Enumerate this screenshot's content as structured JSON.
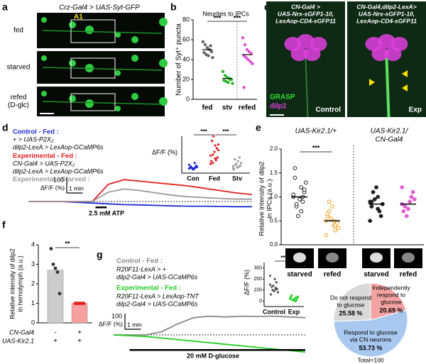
{
  "a": {
    "label": "a",
    "title": "Crz-Gal4 > UAS-Syt-GFP",
    "rows": [
      [
        "fed"
      ],
      [
        "starved"
      ],
      [
        "refed",
        "(D-glc)"
      ]
    ],
    "region": "A1"
  },
  "b": {
    "label": "b",
    "type": "scatter",
    "title": "Neurites to IPCs",
    "ylabel": "Number of Syt⁺ puncta",
    "categories": [
      "fed",
      "stv",
      "refed"
    ],
    "colors": [
      "#666666",
      "#2db82d",
      "#e050d0"
    ],
    "points": [
      [
        58,
        55,
        52,
        50,
        48,
        47,
        45,
        44,
        54,
        42
      ],
      [
        28,
        24,
        22,
        21,
        20,
        19,
        18,
        17,
        20,
        16
      ],
      [
        62,
        55,
        50,
        48,
        46,
        44,
        42,
        40,
        38,
        36,
        12
      ]
    ],
    "means": [
      50,
      21,
      45
    ],
    "ylim": [
      0,
      80
    ],
    "yticks": [
      0,
      20,
      40,
      60,
      80
    ],
    "significance": [
      "***",
      "***"
    ]
  },
  "c": {
    "label": "c",
    "panels": [
      {
        "genotype": [
          "CN-Gal4 >",
          "UAS-Nrx-sGFP1-10,",
          "LexAop-CD4-sGFP11"
        ],
        "condition": "Control"
      },
      {
        "genotype": [
          "CN-Gal4,dilp2-LexA>",
          "UAS-Nrx-sGFP1-10,",
          "LexAop-CD4-sGFP11"
        ],
        "condition": "Exp"
      }
    ],
    "channels": [
      {
        "name": "GRASP",
        "color": "#33dd33"
      },
      {
        "name": "dilp2",
        "color": "#e040e0"
      }
    ]
  },
  "d": {
    "label": "d",
    "type": "line",
    "x": [
      0,
      1,
      2,
      3,
      4,
      5,
      6,
      7,
      8,
      9,
      10,
      11,
      12,
      13,
      14
    ],
    "series": [
      {
        "name": "Control - Fed :",
        "color": "#1f2bd0",
        "genotype": [
          "+ > UAS-P2X₂",
          "dilp2-LexA > LexAop-GCaMP6s"
        ],
        "values": [
          0,
          0,
          0,
          -5,
          -10,
          -15,
          -20,
          -22,
          -25,
          -28,
          -30,
          -30,
          -32,
          -33,
          -33
        ]
      },
      {
        "name": "Experimental - Fed :",
        "color": "#e02020",
        "genotype": [
          "CN-Gal4 > UAS-P2X₂",
          "dilp2-LexA > LexAop-GCaMP6s"
        ],
        "values": [
          0,
          0,
          0,
          0,
          0,
          110,
          140,
          130,
          120,
          110,
          100,
          85,
          70,
          55,
          45
        ]
      },
      {
        "name": "Experimental - Starved :",
        "color": "#999999",
        "genotype": [],
        "values": [
          0,
          0,
          0,
          0,
          0,
          60,
          80,
          70,
          55,
          40,
          30,
          25,
          20,
          15,
          15
        ]
      }
    ],
    "scale_bar": {
      "value": 100,
      "unit": "ΔF/F (%)",
      "time": "1 min"
    },
    "stimulus": "2.5 mM ATP",
    "stimulus_range": [
      4.2,
      4.9
    ],
    "inset": {
      "ylabel": "ΔF/F (%)",
      "categories": [
        "Con",
        "Fed",
        "Stv"
      ],
      "colors": [
        "#1f2bd0",
        "#e02020",
        "#999999"
      ],
      "points": [
        [
          0,
          5,
          10,
          15,
          -5,
          20,
          30,
          -10,
          8,
          12,
          2,
          40,
          60
        ],
        [
          50,
          100,
          150,
          200,
          250,
          300,
          120,
          180,
          80,
          220,
          350,
          140,
          90,
          60,
          260,
          110
        ],
        [
          0,
          20,
          40,
          60,
          80,
          100,
          30,
          10,
          -10,
          120,
          50,
          25
        ]
      ],
      "ylim": [
        -50,
        350
      ],
      "significance": [
        "***",
        "***"
      ]
    }
  },
  "e": {
    "label": "e",
    "titles": [
      [
        "UAS-Kir2.1/+"
      ],
      [
        "UAS-Kir2.1/",
        "CN-Gal4"
      ]
    ],
    "ylabel": [
      "Relative intensity of dilp2",
      "in IPCs (a.u.)"
    ],
    "categories": [
      "starved",
      "refed",
      "starved",
      "refed"
    ],
    "colors": [
      "#222222",
      "#f0a020",
      "#222222",
      "#e060d0"
    ],
    "filled": [
      false,
      false,
      true,
      true
    ],
    "points": [
      [
        1.0,
        1.2,
        1.4,
        0.9,
        0.8,
        1.1,
        0.6,
        1.3,
        0.95,
        1.05,
        0.7,
        1.6,
        1.0,
        0.85,
        1.15
      ],
      [
        0.5,
        0.4,
        0.6,
        0.3,
        0.7,
        0.45,
        0.55,
        0.35,
        0.8,
        0.2,
        0.5,
        0.65,
        0.4,
        0.9
      ],
      [
        0.9,
        1.0,
        0.8,
        0.7,
        1.1,
        0.6,
        0.95,
        0.85,
        1.2,
        0.5,
        0.75,
        0.9
      ],
      [
        0.85,
        0.9,
        0.7,
        1.0,
        0.8,
        1.1,
        0.6,
        0.95,
        0.75,
        1.2
      ]
    ],
    "means": [
      1.0,
      0.5,
      0.85,
      0.85
    ],
    "ylim": [
      0,
      2
    ],
    "yticks": [
      {
        "value": 0,
        "label": "0.0"
      },
      {
        "value": 0.5,
        "label": "0.5"
      },
      {
        "value": 1,
        "label": "1.0"
      },
      {
        "value": 1.5,
        "label": "1.5"
      },
      {
        "value": 2,
        "label": "2.0"
      }
    ],
    "significance": "***"
  },
  "f": {
    "label": "f",
    "type": "bar",
    "ylabel": [
      "Relative intensity of dilp2",
      "in hemolymph (a.u.)"
    ],
    "values": [
      2.7,
      1.0
    ],
    "colors": [
      "#cccccc",
      "#f7a0a0"
    ],
    "point_colors": [
      "#333333",
      "#e02020"
    ],
    "points": [
      [
        3.8,
        3.0,
        2.8,
        2.6,
        1.5
      ],
      [
        1,
        1,
        1,
        1,
        1
      ]
    ],
    "ylim": [
      0,
      4
    ],
    "yticks": [
      0,
      1,
      2,
      3,
      4
    ],
    "significance": "**",
    "genotype_table": [
      {
        "name": "CN-Gal4",
        "cells": [
          "-",
          "+"
        ]
      },
      {
        "name": "UAS-Kir2.1",
        "cells": [
          "+",
          "+"
        ]
      }
    ]
  },
  "g": {
    "label": "g",
    "type": "line",
    "x": [
      0,
      1,
      2,
      3,
      4,
      5,
      6,
      7,
      8,
      9,
      10,
      11,
      12
    ],
    "series": [
      {
        "name": "Control - Fed :",
        "color": "#888888",
        "genotype": [
          "R20F11-LexA > +",
          "dilp2-Gal4 > UAS-GCaMP6s"
        ],
        "values": [
          0,
          0,
          0,
          20,
          70,
          110,
          120,
          115,
          120,
          118,
          120,
          115,
          110
        ]
      },
      {
        "name": "Experimental - Fed :",
        "color": "#22cc22",
        "genotype": [
          "R20F11-LexA > LexAop-TNT",
          "dilp2-Gal4 > UAS-GCaMP6s"
        ],
        "values": [
          0,
          -5,
          -10,
          -20,
          -30,
          -40,
          -50,
          -60,
          -70,
          -80,
          -90,
          -100,
          -110
        ]
      }
    ],
    "scale_bar": {
      "value": 100,
      "unit": "ΔF/F (%)",
      "time": "1 min"
    },
    "stimulus": "20 mM D-glucose",
    "stimulus_range": [
      1,
      12
    ],
    "inset": {
      "ylabel": "ΔF/F (%)",
      "categories": [
        "Control",
        "Exp"
      ],
      "colors": [
        "#555555",
        "#22cc22"
      ],
      "points": [
        [
          150,
          120,
          100,
          80,
          200,
          130,
          110,
          90,
          60,
          170,
          140,
          230,
          105
        ],
        [
          20,
          30,
          10,
          40,
          0,
          50,
          25,
          15,
          35,
          5
        ]
      ],
      "ylim": [
        -50,
        350
      ],
      "yticks": [
        0,
        100,
        200,
        300
      ],
      "significance": [
        "***"
      ]
    }
  },
  "h": {
    "label": "h",
    "type": "pie",
    "labels": [
      [
        "Do not respond",
        "to glucose"
      ],
      [
        "Independently",
        "respond to",
        "glucose"
      ],
      [
        "Respond to glucose",
        "via CN neurons"
      ]
    ],
    "values": [
      25.58,
      20.69,
      53.73
    ],
    "value_labels": [
      "25.58 %",
      "20.69 %",
      "53.73 %"
    ],
    "colors": [
      "#d9d9d9",
      "#f4a3a3",
      "#a9c8f0"
    ],
    "total": "Total=100"
  }
}
